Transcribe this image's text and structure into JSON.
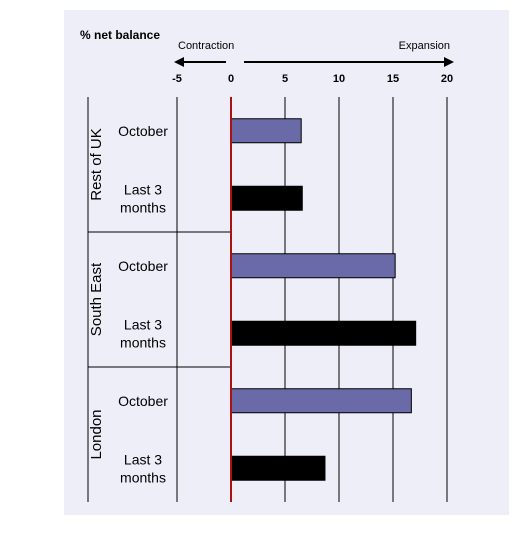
{
  "colors": {
    "background": "#eeeef8",
    "series_october": "#6a6aa8",
    "series_last3": "#000000",
    "zero_line": "#aa1111",
    "grid": "#000000"
  },
  "chart_data": {
    "type": "bar",
    "orientation": "horizontal",
    "ylabel_top": "% net balance",
    "direction_left": "Contraction",
    "direction_right": "Expansion",
    "xlim": [
      -5,
      20
    ],
    "xticks": [
      "-5",
      "0",
      "5",
      "10",
      "15",
      "20"
    ],
    "grid": true,
    "groups": [
      {
        "name": "Rest of UK",
        "bars": [
          {
            "label": "October",
            "value": 6.5,
            "series": "october"
          },
          {
            "label": "Last 3 months",
            "value": 6.6,
            "series": "last3"
          }
        ]
      },
      {
        "name": "South East",
        "bars": [
          {
            "label": "October",
            "value": 15.2,
            "series": "october"
          },
          {
            "label": "Last 3 months",
            "value": 17.1,
            "series": "last3"
          }
        ]
      },
      {
        "name": "London",
        "bars": [
          {
            "label": "October",
            "value": 16.7,
            "series": "october"
          },
          {
            "label": "Last 3 months",
            "value": 8.7,
            "series": "last3"
          }
        ]
      }
    ]
  }
}
